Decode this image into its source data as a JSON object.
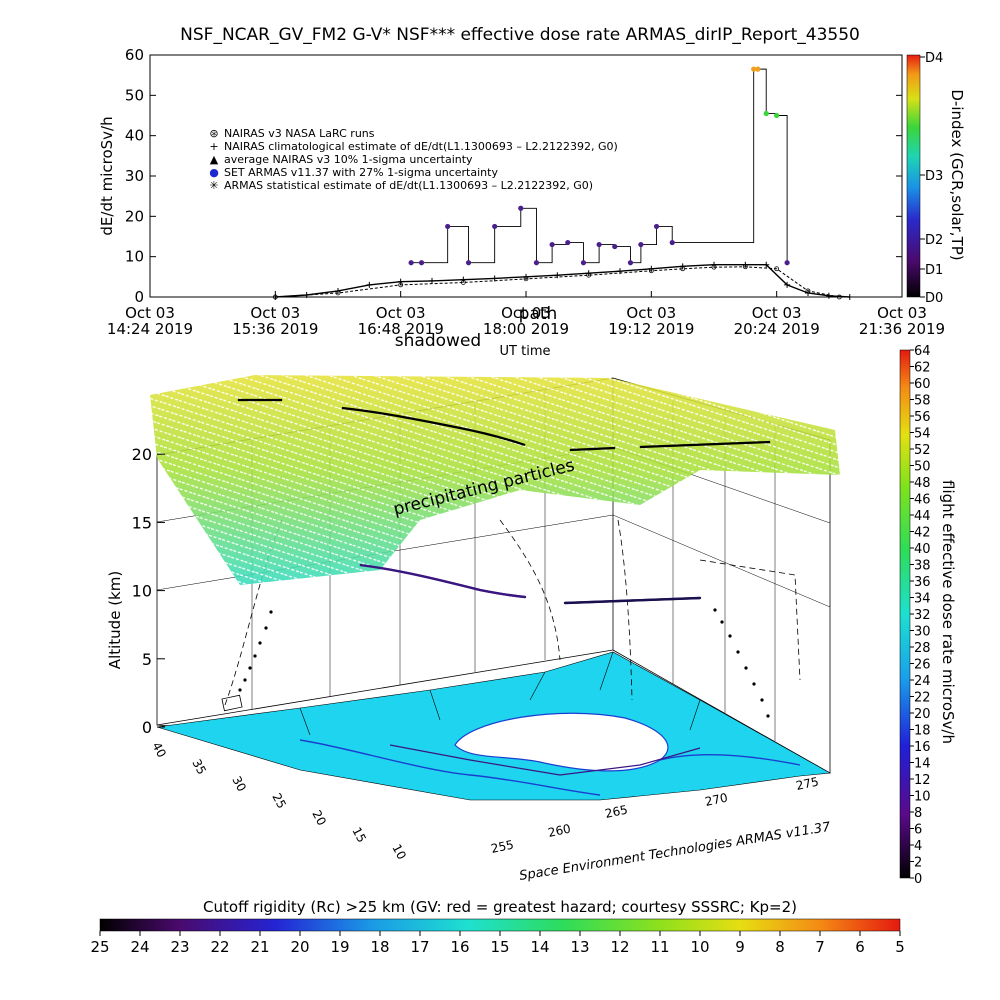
{
  "title": "NSF_NCAR_GV_FM2 G-V* NSF*** effective dose rate ARMAS_dirIP_Report_43550",
  "top_panel": {
    "ylabel": "dE/dt microSv/h",
    "xlabel": "UT time",
    "y_ticks": [
      "0",
      "10",
      "20",
      "30",
      "40",
      "50",
      "60"
    ],
    "x_tick_labels": [
      {
        "line1": "Oct 03",
        "line2": "14:24 2019"
      },
      {
        "line1": "Oct 03",
        "line2": "15:36 2019"
      },
      {
        "line1": "Oct 03",
        "line2": "16:48 2019"
      },
      {
        "line1": "Oct 03",
        "line2": "18:00 2019"
      },
      {
        "line1": "Oct 03",
        "line2": "19:12 2019"
      },
      {
        "line1": "Oct 03",
        "line2": "20:24 2019"
      },
      {
        "line1": "Oct 03",
        "line2": "21:36 2019"
      }
    ],
    "overlay_labels": {
      "path": "path",
      "shadowed": "shadowed"
    },
    "legend": [
      {
        "symbol": "⊛",
        "text": "NAIRAS v3 NASA LaRC runs"
      },
      {
        "symbol": "+",
        "text": "NAIRAS climatological estimate of dE/dt(L1.1300693 – L2.2122392, G0)"
      },
      {
        "symbol": "▲",
        "text": "average NAIRAS v3 10% 1-sigma uncertainty"
      },
      {
        "symbol": "●",
        "text": "SET ARMAS v11.37 with 27% 1-sigma uncertainty"
      },
      {
        "symbol": "✳",
        "text": "ARMAS statistical estimate of dE/dt(L1.1300693 – L2.2122392, G0)"
      }
    ],
    "dindex": {
      "label": "D-index (GCR,solar,TP)",
      "ticks": [
        "D0",
        "D1",
        "D2",
        "D3",
        "D4"
      ]
    }
  },
  "bottom_panel": {
    "zlabel": "Altitude (km)",
    "z_ticks": [
      "0",
      "5",
      "10",
      "15",
      "20"
    ],
    "lat_ticks": [
      "40",
      "35",
      "30",
      "25",
      "20",
      "15",
      "10"
    ],
    "lon_ticks": [
      "255",
      "260",
      "265",
      "270",
      "275"
    ],
    "annotation": "precipitating particles",
    "credit": "Space Environment Technologies ARMAS v11.37",
    "colorbar": {
      "label": "flight effective dose rate microSv/h",
      "ticks": [
        "0",
        "2",
        "4",
        "6",
        "8",
        "10",
        "12",
        "14",
        "16",
        "18",
        "20",
        "22",
        "24",
        "26",
        "28",
        "30",
        "32",
        "34",
        "36",
        "38",
        "40",
        "42",
        "44",
        "46",
        "48",
        "50",
        "52",
        "54",
        "56",
        "58",
        "60",
        "62",
        "64"
      ]
    }
  },
  "cutoff_bar": {
    "title": "Cutoff rigidity (Rc) >25 km (GV: red = greatest hazard; courtesy SSSRC; Kp=2)",
    "ticks": [
      "25",
      "24",
      "23",
      "22",
      "21",
      "20",
      "19",
      "18",
      "17",
      "16",
      "15",
      "14",
      "13",
      "12",
      "11",
      "10",
      "9",
      "8",
      "7",
      "6",
      "5"
    ]
  },
  "chart_data": [
    {
      "type": "scatter",
      "title": "NSF_NCAR_GV_FM2 G-V* NSF*** effective dose rate ARMAS_dirIP_Report_43550",
      "xlabel": "UT time",
      "ylabel": "dE/dt microSv/h",
      "ylim": [
        0,
        60
      ],
      "xlim": [
        "Oct 03 14:24 2019",
        "Oct 03 21:36 2019"
      ],
      "series": [
        {
          "name": "SET ARMAS v11.37 with 27% 1-sigma uncertainty",
          "x": [
            16.9,
            17.0,
            17.25,
            17.45,
            17.7,
            17.95,
            18.1,
            18.25,
            18.4,
            18.55,
            18.7,
            18.85,
            19.0,
            19.1,
            19.25,
            19.4,
            20.18,
            20.22,
            20.3,
            20.4,
            20.5
          ],
          "y": [
            8.5,
            8.5,
            17.5,
            8.5,
            17.5,
            22,
            8.5,
            13,
            13.5,
            8.5,
            13,
            12.5,
            8.5,
            13,
            17.5,
            13.5,
            56.5,
            56.5,
            45.5,
            45,
            8.5
          ]
        },
        {
          "name": "NAIRAS climatological estimate of dE/dt(L1.1300693 – L2.2122392, G0)",
          "x": [
            15.6,
            15.9,
            16.2,
            16.5,
            16.8,
            17.1,
            17.4,
            17.7,
            18.0,
            18.3,
            18.6,
            18.9,
            19.2,
            19.5,
            19.8,
            20.1,
            20.3,
            20.5,
            20.7,
            20.9,
            21.1
          ],
          "y": [
            0,
            0.5,
            1.5,
            3.0,
            3.8,
            4.0,
            4.3,
            4.6,
            5.0,
            5.4,
            5.9,
            6.4,
            7.0,
            7.6,
            8.0,
            8.0,
            8.0,
            3.0,
            1.0,
            0.3,
            0
          ]
        },
        {
          "name": "ARMAS statistical estimate of dE/dt(L1.1300693 – L2.2122392, G0)",
          "x": [
            15.6,
            16.2,
            16.8,
            17.4,
            18.0,
            18.6,
            19.2,
            19.5,
            19.8,
            20.1,
            20.4,
            20.7,
            21.0
          ],
          "y": [
            0,
            1.0,
            3.0,
            3.6,
            4.5,
            5.4,
            6.5,
            7.0,
            7.4,
            7.5,
            7.0,
            1.5,
            0
          ]
        }
      ]
    },
    {
      "type": "scatter",
      "title": "",
      "zlabel": "Altitude (km)",
      "zlim": [
        0,
        20
      ],
      "lat_range": [
        10,
        40
      ],
      "lon_range": [
        255,
        275
      ],
      "annotation": "precipitating particles",
      "colorbar_range": [
        0,
        64
      ]
    }
  ],
  "colors": {
    "armas_points": "#4b1f8c",
    "nairas_line": "#000000",
    "map_fill": "#1fd4ef",
    "pathline": "#3a1680"
  }
}
